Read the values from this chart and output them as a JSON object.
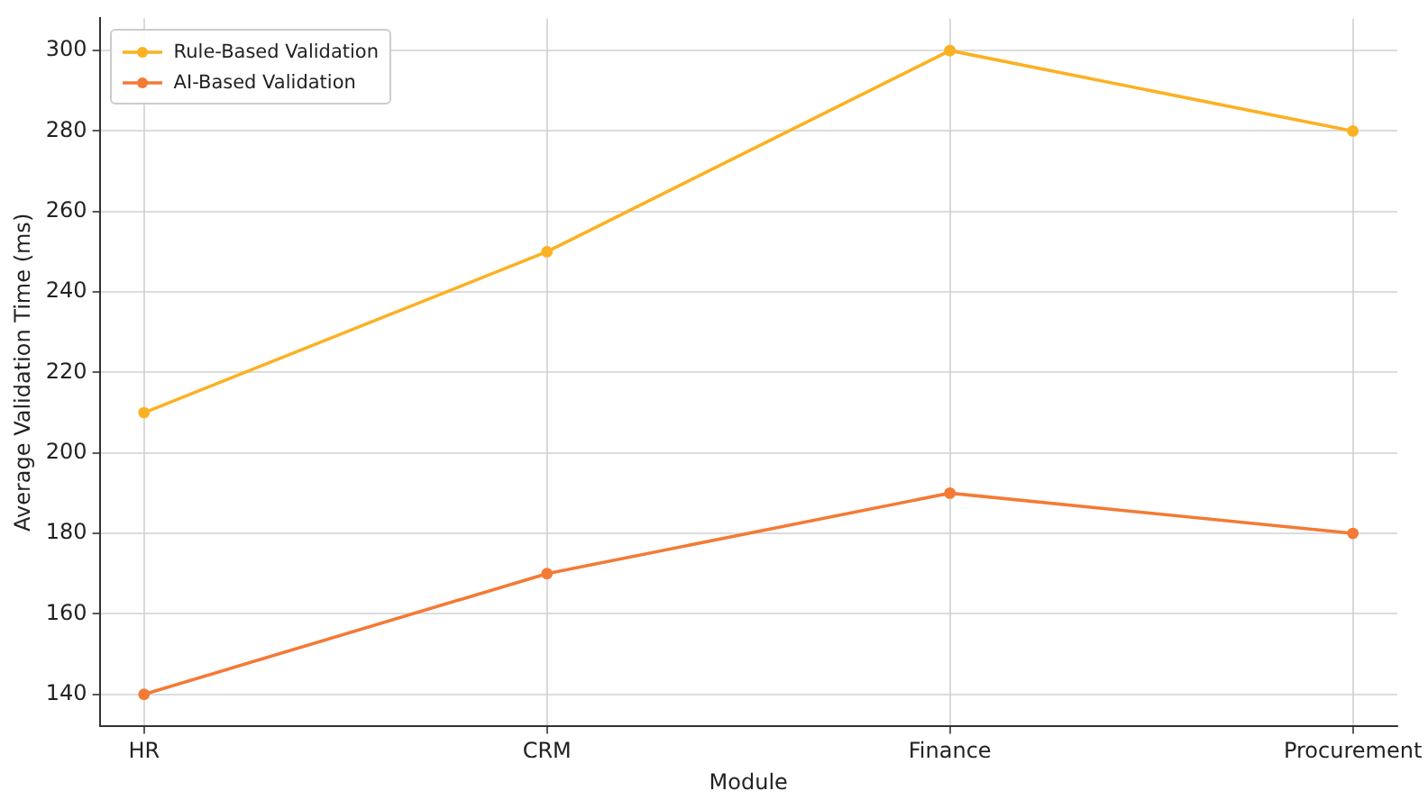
{
  "chart_data": {
    "type": "line",
    "xlabel": "Module",
    "ylabel": "Average Validation Time (ms)",
    "categories": [
      "HR",
      "CRM",
      "Finance",
      "Procurement"
    ],
    "series": [
      {
        "name": "Rule-Based Validation",
        "color": "#fbb121",
        "values": [
          210,
          250,
          300,
          280
        ]
      },
      {
        "name": "AI-Based Validation",
        "color": "#f47a35",
        "values": [
          140,
          170,
          190,
          180
        ]
      }
    ],
    "ylim": [
      132,
      308
    ],
    "yticks": [
      140,
      160,
      180,
      200,
      220,
      240,
      260,
      280,
      300
    ],
    "grid": true,
    "legend": "top left",
    "marker": "circle",
    "line_style": "solid"
  }
}
